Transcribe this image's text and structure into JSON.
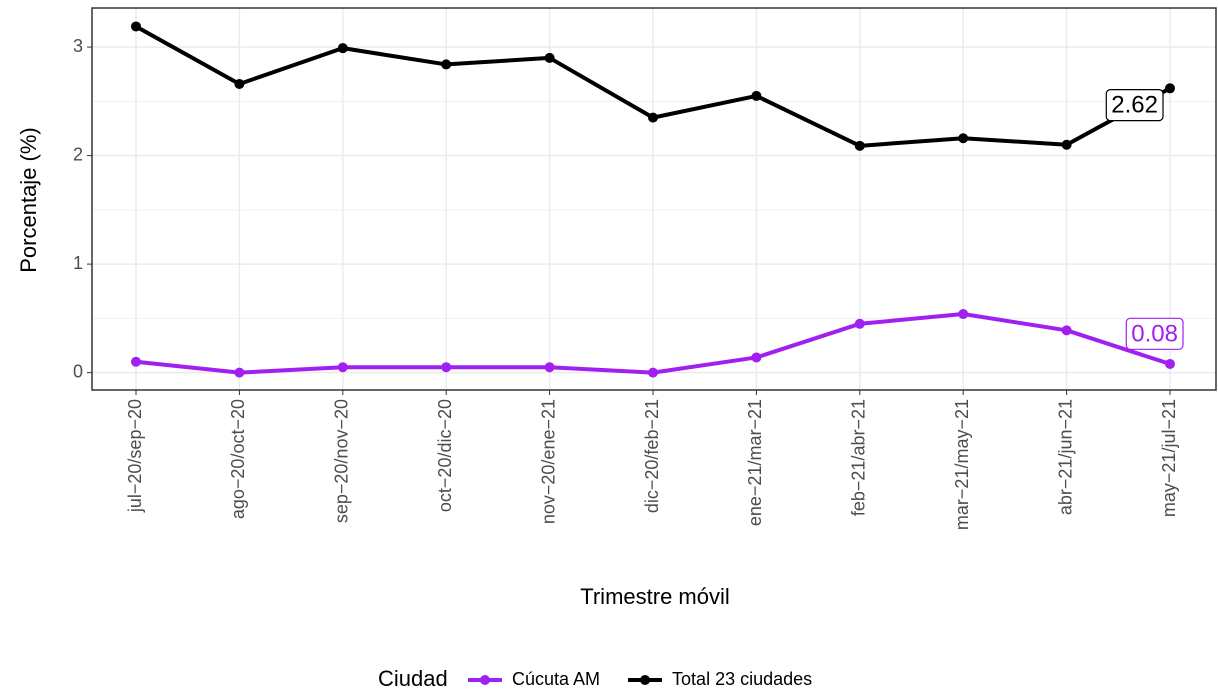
{
  "chart_data": {
    "type": "line",
    "x_label": "Trimestre móvil",
    "y_label": "Porcentaje (%)",
    "legend_title": "Ciudad",
    "legend_position": "bottom",
    "grid": true,
    "categories": [
      "jul−20/sep−20",
      "ago−20/oct−20",
      "sep−20/nov−20",
      "oct−20/dic−20",
      "nov−20/ene−21",
      "dic−20/feb−21",
      "ene−21/mar−21",
      "feb−21/abr−21",
      "mar−21/may−21",
      "abr−21/jun−21",
      "may−21/jul−21"
    ],
    "ylim": [
      -0.16,
      3.36
    ],
    "yticks": [
      0,
      1,
      2,
      3
    ],
    "minor_yticks": [
      0.5,
      1.5,
      2.5
    ],
    "series": [
      {
        "name": "Cúcuta AM",
        "color": "#a020f0",
        "values": [
          0.1,
          0.0,
          0.05,
          0.05,
          0.05,
          0.0,
          0.14,
          0.45,
          0.54,
          0.39,
          0.08
        ],
        "value_labels": [
          null,
          null,
          null,
          null,
          null,
          null,
          null,
          null,
          null,
          null,
          "0.08"
        ]
      },
      {
        "name": "Total 23 ciudades",
        "color": "#000000",
        "values": [
          3.19,
          2.66,
          2.99,
          2.84,
          2.9,
          2.35,
          2.55,
          2.09,
          2.16,
          2.1,
          2.62
        ],
        "value_labels": [
          null,
          null,
          null,
          null,
          null,
          null,
          null,
          null,
          null,
          null,
          "2.62"
        ]
      }
    ]
  }
}
